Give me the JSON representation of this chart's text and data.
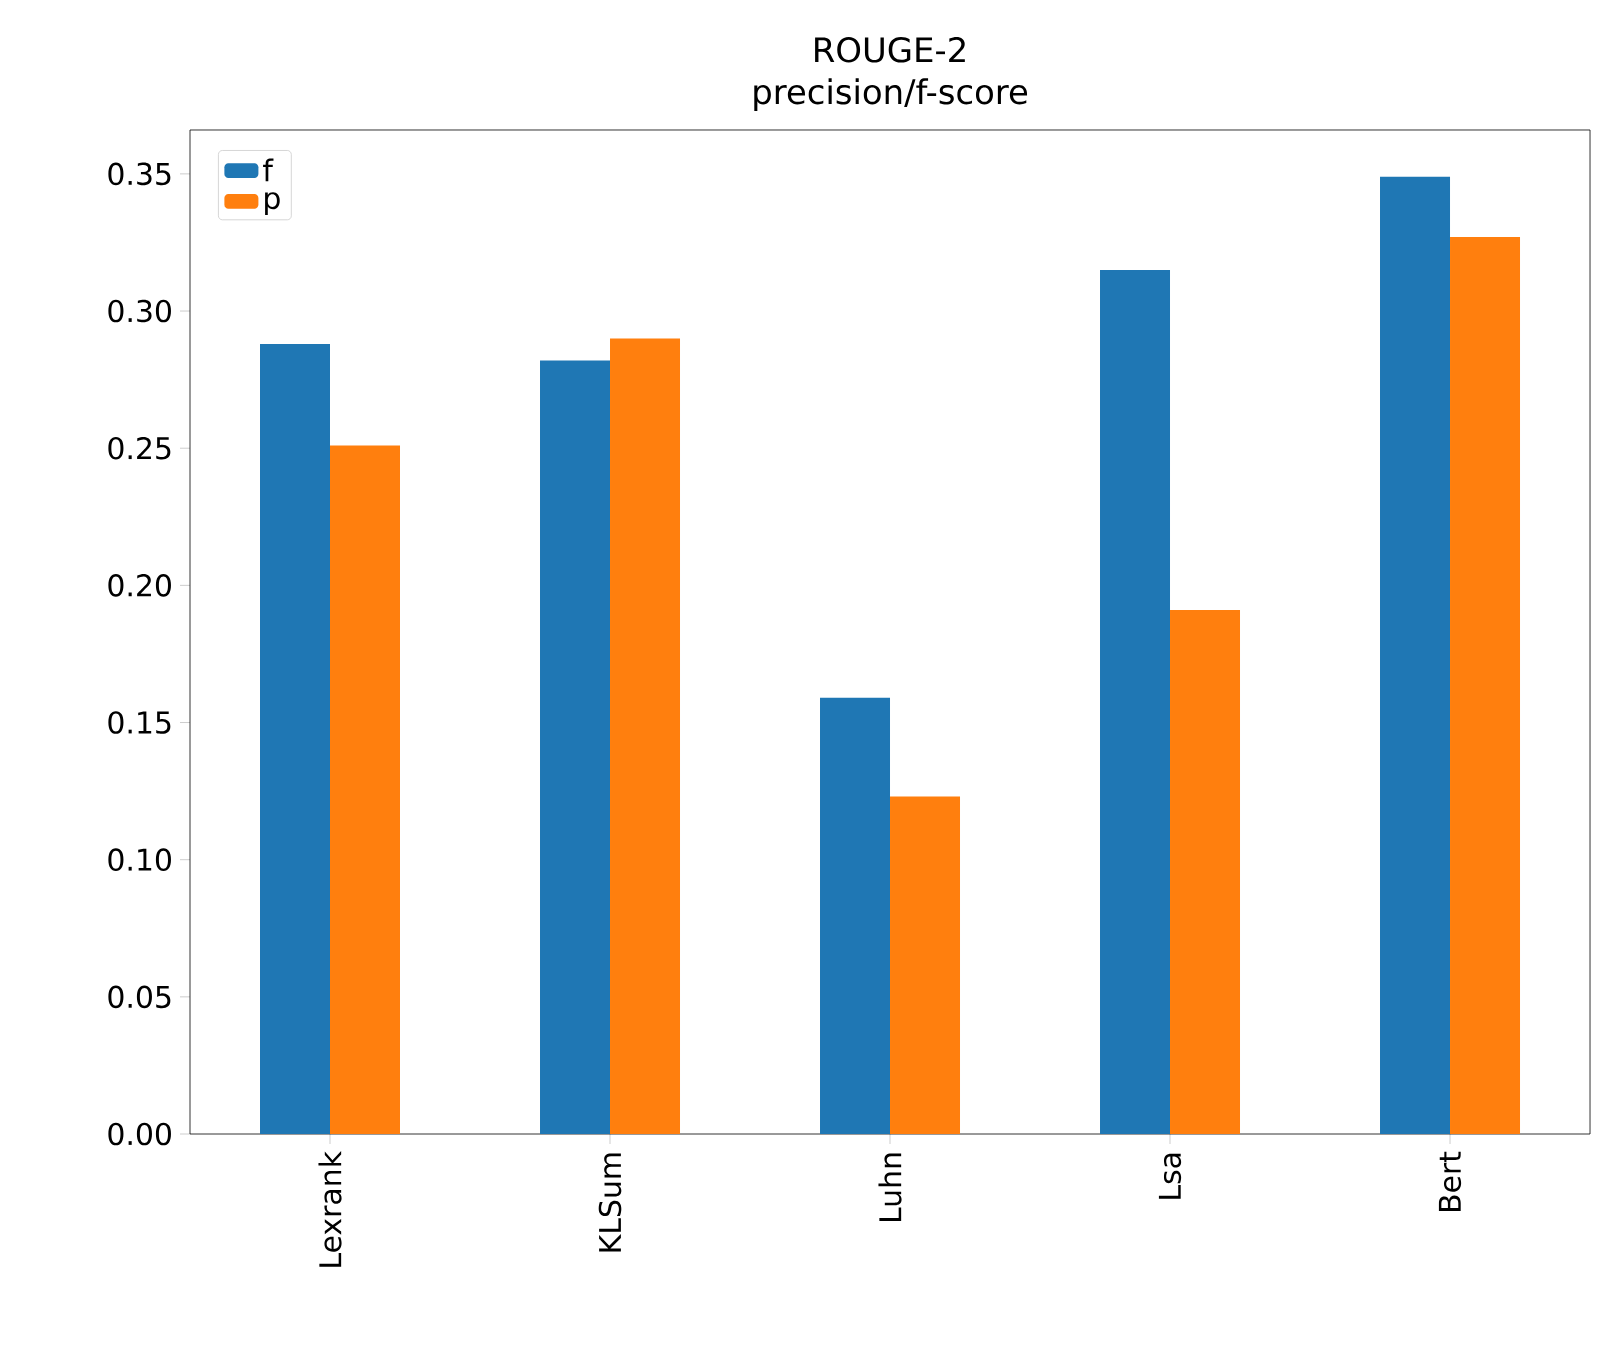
{
  "chart_data": {
    "type": "bar",
    "title": "ROUGE-2",
    "subtitle": "precision/f-score",
    "categories": [
      "Lexrank",
      "KLSum",
      "Luhn",
      "Lsa",
      "Bert"
    ],
    "series": [
      {
        "name": "f",
        "color": "#1f77b4",
        "values": [
          0.288,
          0.282,
          0.159,
          0.315,
          0.349
        ]
      },
      {
        "name": "p",
        "color": "#ff7f0e",
        "values": [
          0.251,
          0.29,
          0.123,
          0.191,
          0.327
        ]
      }
    ],
    "ylim": [
      0,
      0.366
    ],
    "yticks": [
      {
        "value": 0,
        "label": "0.00"
      },
      0.05,
      {
        "value": 0.1,
        "label": "0.10"
      },
      0.15,
      {
        "value": 0.2,
        "label": "0.20"
      },
      0.25,
      {
        "value": 0.3,
        "label": "0.30"
      },
      0.35
    ],
    "grid": false,
    "legend": "top left"
  }
}
